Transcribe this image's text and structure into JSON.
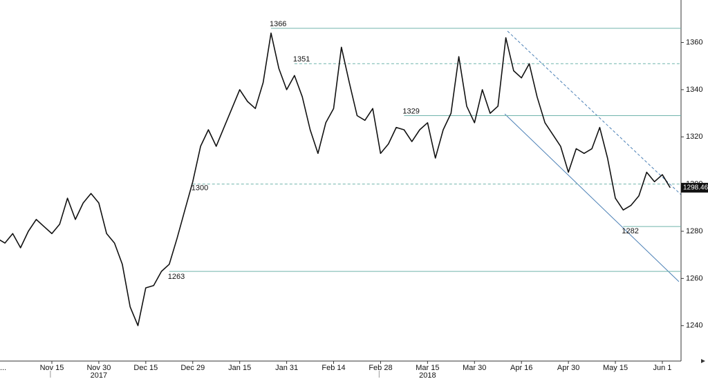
{
  "chart_data": {
    "type": "line",
    "categories": [
      "...",
      null,
      null,
      null,
      null,
      null,
      null,
      "Nov 15",
      null,
      null,
      null,
      null,
      null,
      "Nov 30",
      null,
      null,
      null,
      null,
      null,
      "Dec 15",
      null,
      null,
      null,
      null,
      null,
      "Dec 29",
      null,
      null,
      null,
      null,
      null,
      "Jan 15",
      null,
      null,
      null,
      null,
      null,
      "Jan 31",
      null,
      null,
      null,
      null,
      null,
      "Feb 14",
      null,
      null,
      null,
      null,
      null,
      "Feb 28",
      null,
      null,
      null,
      null,
      null,
      "Mar 15",
      null,
      null,
      null,
      null,
      null,
      "Mar 30",
      null,
      null,
      null,
      null,
      null,
      "Apr 16",
      null,
      null,
      null,
      null,
      null,
      "Apr 30",
      null,
      null,
      null,
      null,
      null,
      "May 15",
      null,
      null,
      null,
      null,
      null,
      "Jun 1",
      null
    ],
    "values": [
      1277,
      1275,
      1279,
      1273,
      1280,
      1285,
      1282,
      1279,
      1283,
      1294,
      1285,
      1292,
      1296,
      1292,
      1279,
      1275,
      1266,
      1248,
      1240,
      1256,
      1257,
      1263,
      1266,
      1277,
      1289,
      1301,
      1316,
      1323,
      1316,
      1324,
      1332,
      1340,
      1335,
      1332,
      1343,
      1364,
      1349,
      1340,
      1346,
      1337,
      1323,
      1313,
      1326,
      1332,
      1358,
      1343,
      1329,
      1327,
      1332,
      1313,
      1317,
      1324,
      1323,
      1318,
      1323,
      1326,
      1311,
      1323,
      1330,
      1354,
      1333,
      1326,
      1340,
      1330,
      1333,
      1362,
      1348,
      1345,
      1351,
      1337,
      1326,
      1321,
      1316,
      1305,
      1315,
      1313,
      1315,
      1324,
      1311,
      1294,
      1289,
      1291,
      1295,
      1305,
      1301,
      1304,
      1298.46
    ],
    "color": "#111111",
    "year_labels": [
      "2017",
      "2018"
    ],
    "levels": [
      1366,
      1351,
      1329,
      1300,
      1282,
      1263
    ],
    "level_styles": [
      "solid",
      "dashed",
      "solid",
      "dashed",
      "solid",
      "solid"
    ],
    "level_color": "#6fb3ab",
    "ylim": [
      1225,
      1378
    ],
    "yticks": [
      1240,
      1260,
      1280,
      1300,
      1320,
      1340,
      1360
    ]
  }
}
